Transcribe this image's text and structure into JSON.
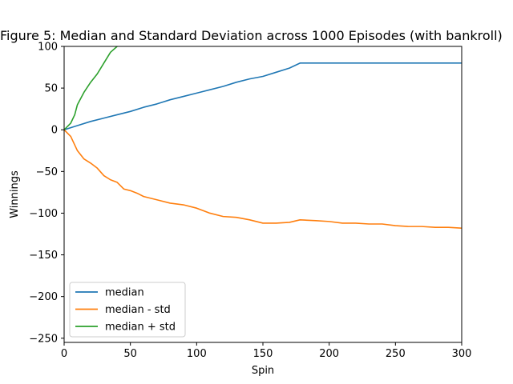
{
  "chart_data": {
    "type": "line",
    "title": "Figure 5: Median and Standard Deviation across 1000 Episodes (with bankroll)",
    "xlabel": "Spin",
    "ylabel": "Winnings",
    "xlim": [
      0,
      300
    ],
    "ylim": [
      -255,
      100
    ],
    "xticks": [
      0,
      50,
      100,
      150,
      200,
      250,
      300
    ],
    "xtick_labels": [
      "0",
      "50",
      "100",
      "150",
      "200",
      "250",
      "300"
    ],
    "yticks": [
      100,
      50,
      0,
      -50,
      -100,
      -150,
      -200,
      -250
    ],
    "ytick_labels": [
      "100",
      "50",
      "0",
      "−50",
      "−100",
      "−150",
      "−200",
      "−250"
    ],
    "grid": false,
    "legend_position": "lower-left",
    "series": [
      {
        "name": "median",
        "color": "#1f77b4",
        "x": [
          0,
          10,
          20,
          30,
          40,
          50,
          60,
          70,
          80,
          90,
          100,
          110,
          120,
          130,
          140,
          150,
          160,
          170,
          178,
          200,
          250,
          300
        ],
        "y": [
          0,
          5,
          10,
          14,
          18,
          22,
          27,
          31,
          36,
          40,
          44,
          48,
          52,
          57,
          61,
          64,
          69,
          74,
          80,
          80,
          80,
          80
        ]
      },
      {
        "name": "median - std",
        "color": "#ff7f0e",
        "x": [
          0,
          5,
          10,
          15,
          20,
          25,
          30,
          35,
          40,
          45,
          50,
          55,
          60,
          70,
          80,
          90,
          100,
          110,
          120,
          130,
          140,
          150,
          160,
          170,
          178,
          190,
          200,
          210,
          220,
          230,
          240,
          250,
          260,
          270,
          280,
          290,
          300
        ],
        "y": [
          0,
          -8,
          -25,
          -35,
          -40,
          -46,
          -55,
          -60,
          -63,
          -71,
          -73,
          -76,
          -80,
          -84,
          -88,
          -90,
          -94,
          -100,
          -104,
          -105,
          -108,
          -112,
          -112,
          -111,
          -108,
          -109,
          -110,
          -112,
          -112,
          -113,
          -113,
          -115,
          -116,
          -116,
          -117,
          -117,
          -118
        ]
      },
      {
        "name": "median + std",
        "color": "#2ca02c",
        "x": [
          0,
          5,
          8,
          10,
          15,
          20,
          25,
          30,
          35,
          40
        ],
        "y": [
          0,
          8,
          18,
          30,
          45,
          57,
          67,
          80,
          93,
          100
        ]
      }
    ]
  }
}
